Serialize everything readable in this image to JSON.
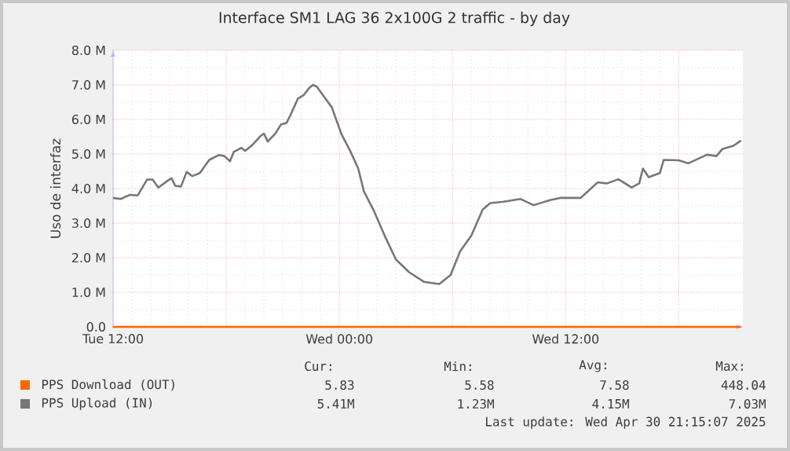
{
  "chart_data": {
    "type": "line",
    "title": "Interface SM1 LAG 36 2x100G 2 traffic - by day",
    "ylabel": "Uso de interfaz",
    "xlim": [
      "2025-04-29T12:00",
      "2025-04-30T21:24"
    ],
    "ylim": [
      0,
      8000000
    ],
    "xticks": [
      {
        "value": "2025-04-29T12:00",
        "label": "Tue 12:00"
      },
      {
        "value": "2025-04-29T18:00",
        "label": null
      },
      {
        "value": "2025-04-30T00:00",
        "label": "Wed 00:00"
      },
      {
        "value": "2025-04-30T06:00",
        "label": null
      },
      {
        "value": "2025-04-30T12:00",
        "label": "Wed 12:00"
      },
      {
        "value": "2025-04-30T18:00",
        "label": null
      }
    ],
    "yticks": [
      {
        "value": 0,
        "label": "0.0"
      },
      {
        "value": 1000000,
        "label": "1.0 M"
      },
      {
        "value": 2000000,
        "label": "2.0 M"
      },
      {
        "value": 3000000,
        "label": "3.0 M"
      },
      {
        "value": 4000000,
        "label": "4.0 M"
      },
      {
        "value": 5000000,
        "label": "5.0 M"
      },
      {
        "value": 6000000,
        "label": "6.0 M"
      },
      {
        "value": 7000000,
        "label": "7.0 M"
      },
      {
        "value": 8000000,
        "label": "8.0 M"
      }
    ],
    "grid": true,
    "legend": "bottom",
    "series": [
      {
        "name": "PPS Download (OUT)",
        "color": "#ff6600",
        "x": [
          "2025-04-29T12:00",
          "2025-04-30T21:18"
        ],
        "values": [
          0,
          0
        ]
      },
      {
        "name": "PPS Upload (IN)",
        "color": "#777777",
        "x": [
          "2025-04-29T12:00",
          "2025-04-29T12:24",
          "2025-04-29T12:54",
          "2025-04-29T13:18",
          "2025-04-29T13:48",
          "2025-04-29T14:06",
          "2025-04-29T14:24",
          "2025-04-29T14:54",
          "2025-04-29T15:06",
          "2025-04-29T15:18",
          "2025-04-29T15:36",
          "2025-04-29T15:54",
          "2025-04-29T16:12",
          "2025-04-29T16:36",
          "2025-04-29T17:06",
          "2025-04-29T17:36",
          "2025-04-29T17:54",
          "2025-04-29T18:12",
          "2025-04-29T18:24",
          "2025-04-29T18:48",
          "2025-04-29T19:00",
          "2025-04-29T19:24",
          "2025-04-29T19:48",
          "2025-04-29T20:00",
          "2025-04-29T20:12",
          "2025-04-29T20:36",
          "2025-04-29T20:54",
          "2025-04-29T21:12",
          "2025-04-29T21:24",
          "2025-04-29T21:48",
          "2025-04-29T22:06",
          "2025-04-29T22:24",
          "2025-04-29T22:36",
          "2025-04-29T22:48",
          "2025-04-29T23:12",
          "2025-04-29T23:36",
          "2025-04-30T00:06",
          "2025-04-30T00:36",
          "2025-04-30T01:00",
          "2025-04-30T01:18",
          "2025-04-30T01:48",
          "2025-04-30T02:24",
          "2025-04-30T03:00",
          "2025-04-30T03:42",
          "2025-04-30T04:30",
          "2025-04-30T05:18",
          "2025-04-30T05:54",
          "2025-04-30T06:24",
          "2025-04-30T07:00",
          "2025-04-30T07:36",
          "2025-04-30T08:00",
          "2025-04-30T08:42",
          "2025-04-30T09:36",
          "2025-04-30T10:18",
          "2025-04-30T11:12",
          "2025-04-30T11:42",
          "2025-04-30T12:48",
          "2025-04-30T13:06",
          "2025-04-30T13:42",
          "2025-04-30T14:12",
          "2025-04-30T14:48",
          "2025-04-30T15:30",
          "2025-04-30T15:54",
          "2025-04-30T16:06",
          "2025-04-30T16:24",
          "2025-04-30T17:00",
          "2025-04-30T17:12",
          "2025-04-30T18:00",
          "2025-04-30T18:30",
          "2025-04-30T19:30",
          "2025-04-30T20:00",
          "2025-04-30T20:18",
          "2025-04-30T20:54",
          "2025-04-30T21:18"
        ],
        "values": [
          3730000,
          3700000,
          3820000,
          3800000,
          4260000,
          4260000,
          4030000,
          4230000,
          4300000,
          4080000,
          4060000,
          4480000,
          4360000,
          4450000,
          4830000,
          4970000,
          4940000,
          4790000,
          5060000,
          5180000,
          5090000,
          5270000,
          5510000,
          5590000,
          5360000,
          5590000,
          5850000,
          5900000,
          6120000,
          6600000,
          6700000,
          6910000,
          7000000,
          6950000,
          6650000,
          6350000,
          5590000,
          5060000,
          4580000,
          3920000,
          3390000,
          2640000,
          1950000,
          1580000,
          1300000,
          1240000,
          1500000,
          2180000,
          2640000,
          3390000,
          3580000,
          3620000,
          3700000,
          3520000,
          3670000,
          3730000,
          3730000,
          3880000,
          4180000,
          4150000,
          4270000,
          4030000,
          4150000,
          4580000,
          4330000,
          4450000,
          4830000,
          4820000,
          4730000,
          4980000,
          4940000,
          5140000,
          5240000,
          5390000
        ]
      }
    ],
    "annotations": [
      "Cur:",
      "Min:",
      "Avg:",
      "Max:",
      "5.83",
      "5.58",
      "7.58",
      "448.04",
      "5.41M",
      "1.23M",
      "4.15M",
      "7.03M",
      "Last update: Wed Apr 30 21:15:07 2025"
    ]
  }
}
